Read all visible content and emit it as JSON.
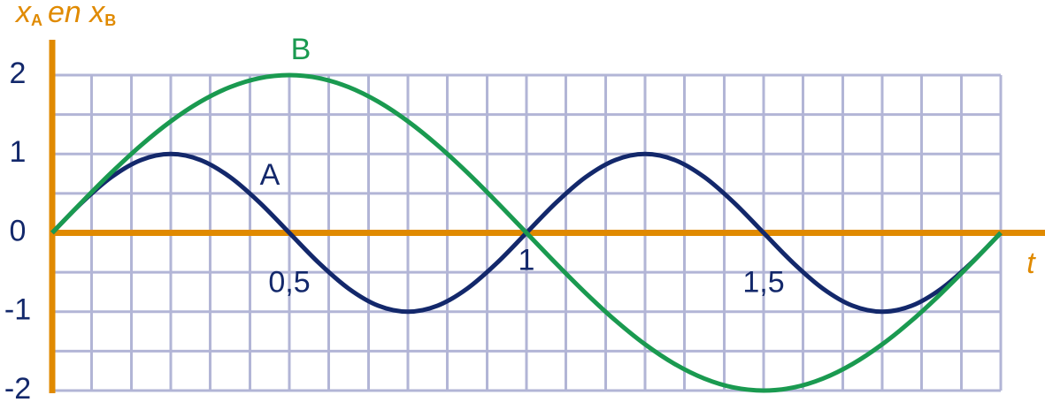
{
  "chart_data": {
    "type": "line",
    "ylabel": [
      "x",
      "A",
      "en x",
      "B"
    ],
    "xlabel": "t",
    "x": [
      0,
      0.0625,
      0.125,
      0.1875,
      0.25,
      0.3125,
      0.375,
      0.4375,
      0.5,
      0.5625,
      0.625,
      0.6875,
      0.75,
      0.8125,
      0.875,
      0.9375,
      1,
      1.0625,
      1.125,
      1.1875,
      1.25,
      1.3125,
      1.375,
      1.4375,
      1.5,
      1.5625,
      1.625,
      1.6875,
      1.75,
      1.8125,
      1.875,
      1.9375,
      2
    ],
    "series": [
      {
        "name": "A",
        "color": "#13286b",
        "values": [
          0,
          0.383,
          0.707,
          0.924,
          1,
          0.924,
          0.707,
          0.383,
          0,
          -0.383,
          -0.707,
          -0.924,
          -1,
          -0.924,
          -0.707,
          -0.383,
          0,
          0.383,
          0.707,
          0.924,
          1,
          0.924,
          0.707,
          0.383,
          0,
          -0.383,
          -0.707,
          -0.924,
          -1,
          -0.924,
          -0.707,
          -0.383,
          0
        ]
      },
      {
        "name": "B",
        "color": "#1a9a50",
        "values": [
          0,
          0.39,
          0.765,
          1.111,
          1.414,
          1.663,
          1.848,
          1.962,
          2,
          1.962,
          1.848,
          1.663,
          1.414,
          1.111,
          0.765,
          0.39,
          0,
          -0.39,
          -0.765,
          -1.111,
          -1.414,
          -1.663,
          -1.848,
          -1.962,
          -2,
          -1.962,
          -1.848,
          -1.663,
          -1.414,
          -1.111,
          -0.765,
          -0.39,
          0
        ]
      }
    ],
    "xlim": [
      0,
      2
    ],
    "ylim": [
      -2,
      2
    ],
    "xticks": [
      {
        "value": 0.5,
        "label": "0,5"
      },
      1,
      {
        "value": 1.5,
        "label": "1,5"
      }
    ],
    "yticks": [
      2,
      1,
      0,
      -1,
      -2
    ],
    "xgrid": [
      0,
      0.083,
      0.167,
      0.25,
      0.333,
      0.417,
      0.5,
      0.583,
      0.667,
      0.75,
      0.833,
      0.917,
      1,
      1.083,
      1.167,
      1.25,
      1.333,
      1.417,
      1.5,
      1.583,
      1.667,
      1.75,
      1.833,
      1.917,
      2
    ],
    "ygrid": [
      -2,
      -1.5,
      -1,
      -0.5,
      0,
      0.5,
      1,
      1.5,
      2
    ],
    "grid": true,
    "grid_color": "#b2b5d6",
    "axis_color": "#e08a00"
  }
}
